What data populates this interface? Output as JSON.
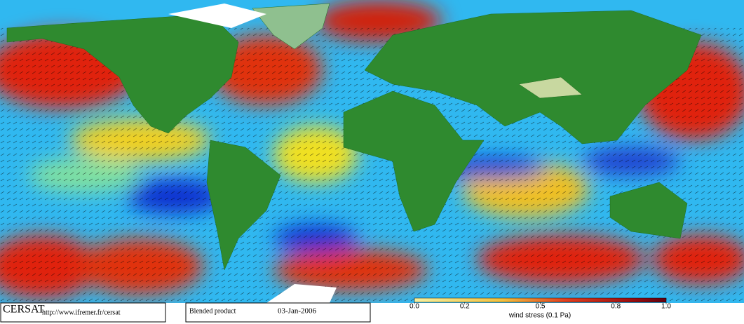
{
  "footer": {
    "logo": "CERSAT",
    "url": "http://www.ifremer.fr/cersat",
    "product": "Blended product",
    "date": "03-Jan-2006"
  },
  "colorbar": {
    "label": "wind stress (0.1 Pa)",
    "lim": [
      0,
      1
    ],
    "ticks": [
      {
        "value": 0,
        "label": "0.0"
      },
      0.2,
      0.5,
      0.8,
      {
        "value": 1,
        "label": "1.0"
      }
    ]
  }
}
